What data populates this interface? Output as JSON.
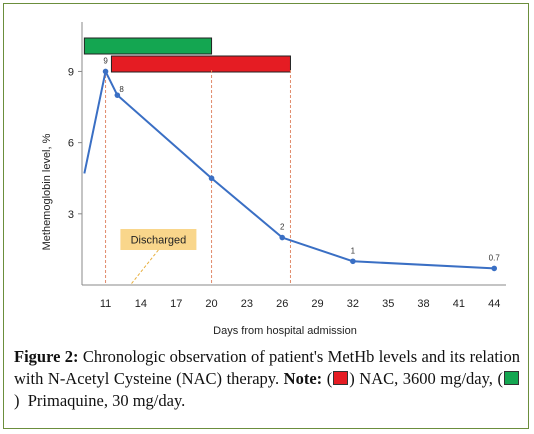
{
  "chart_data": {
    "type": "line",
    "ylabel": "Methemoglobin level, %",
    "xlabel": "Days from hospital admission",
    "x_ticks": [
      11,
      14,
      17,
      20,
      23,
      26,
      29,
      32,
      35,
      38,
      41,
      44
    ],
    "y_ticks": [
      3,
      6,
      9
    ],
    "xlim": [
      9,
      45
    ],
    "ylim": [
      0,
      11
    ],
    "series": [
      {
        "x": [
          9.2,
          11,
          12,
          20,
          26,
          32,
          44
        ],
        "y": [
          4.7,
          9,
          8,
          4.5,
          2,
          1,
          0.7
        ],
        "labels": [
          "",
          "9",
          "8",
          "",
          "2",
          "1",
          "0.7"
        ],
        "color": "#3a6fc4"
      }
    ],
    "therapy_bars": [
      {
        "name": "Primaquine",
        "start": 9.2,
        "end": 20,
        "color": "#14a651"
      },
      {
        "name": "NAC",
        "start": 11.5,
        "end": 26.7,
        "color": "#e51c23"
      }
    ],
    "vlines": [
      11,
      20,
      26.7
    ],
    "annotation": {
      "text": "Discharged",
      "x": 12.6,
      "color": "#f9d68b"
    },
    "grid": false
  },
  "caption": {
    "label": "Figure 2:",
    "text": "Chronologic observation of patient's MetHb levels and its relation with N-Acetyl Cysteine (NAC) therapy.",
    "note_label": "Note:",
    "legend": [
      {
        "text": "NAC, 3600 mg/day,",
        "color": "#e51c23"
      },
      {
        "text": "Primaquine, 30 mg/day.",
        "color": "#14a651"
      }
    ]
  }
}
